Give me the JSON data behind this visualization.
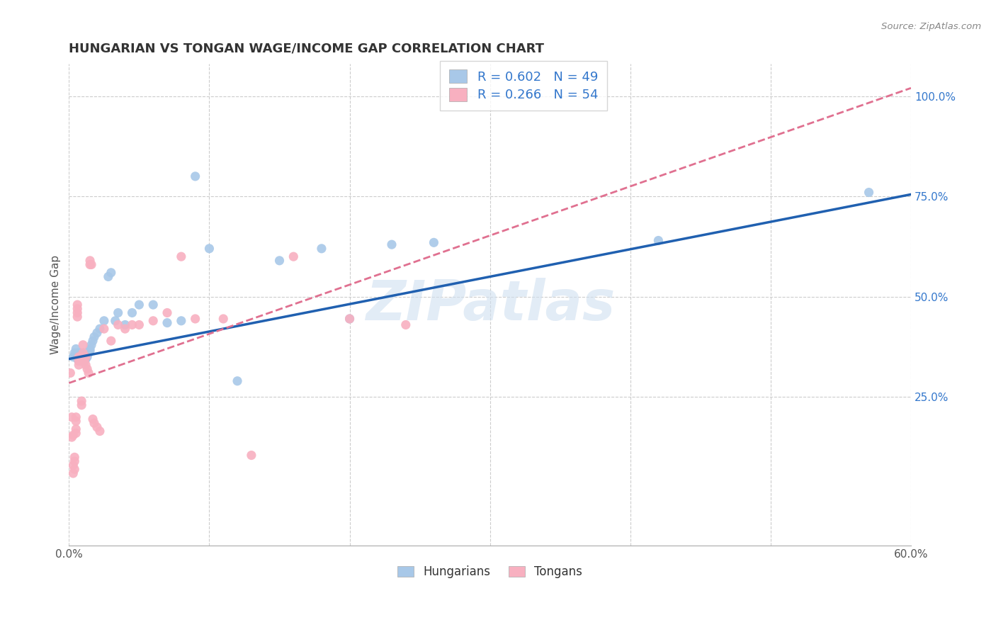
{
  "title": "HUNGARIAN VS TONGAN WAGE/INCOME GAP CORRELATION CHART",
  "source": "Source: ZipAtlas.com",
  "ylabel": "Wage/Income Gap",
  "xlim": [
    0.0,
    0.6
  ],
  "ylim": [
    -0.12,
    1.08
  ],
  "yticks": [
    0.25,
    0.5,
    0.75,
    1.0
  ],
  "ytick_labels": [
    "25.0%",
    "50.0%",
    "75.0%",
    "100.0%"
  ],
  "xticks": [
    0.0,
    0.1,
    0.2,
    0.3,
    0.4,
    0.5,
    0.6
  ],
  "xtick_labels": [
    "0.0%",
    "",
    "",
    "",
    "",
    "",
    "60.0%"
  ],
  "hungarian_R": 0.602,
  "hungarian_N": 49,
  "tongan_R": 0.266,
  "tongan_N": 54,
  "blue_color": "#a8c8e8",
  "pink_color": "#f8b0c0",
  "blue_line_color": "#2060b0",
  "pink_line_color": "#e07090",
  "axis_color": "#3377cc",
  "legend_text_color": "#3377cc",
  "background_color": "#ffffff",
  "grid_color": "#cccccc",
  "title_color": "#333333",
  "watermark_color": "#d0e0f0",
  "hungarian_x": [
    0.003,
    0.004,
    0.005,
    0.005,
    0.006,
    0.006,
    0.007,
    0.007,
    0.008,
    0.008,
    0.009,
    0.009,
    0.01,
    0.01,
    0.011,
    0.011,
    0.012,
    0.012,
    0.013,
    0.013,
    0.014,
    0.015,
    0.015,
    0.016,
    0.017,
    0.018,
    0.02,
    0.022,
    0.025,
    0.028,
    0.03,
    0.033,
    0.035,
    0.04,
    0.045,
    0.05,
    0.06,
    0.07,
    0.08,
    0.09,
    0.1,
    0.12,
    0.15,
    0.18,
    0.2,
    0.23,
    0.26,
    0.42,
    0.57
  ],
  "hungarian_y": [
    0.35,
    0.36,
    0.37,
    0.355,
    0.345,
    0.36,
    0.34,
    0.355,
    0.35,
    0.36,
    0.34,
    0.355,
    0.345,
    0.36,
    0.35,
    0.34,
    0.355,
    0.345,
    0.36,
    0.35,
    0.36,
    0.37,
    0.365,
    0.38,
    0.39,
    0.4,
    0.41,
    0.42,
    0.44,
    0.55,
    0.56,
    0.44,
    0.46,
    0.43,
    0.46,
    0.48,
    0.48,
    0.435,
    0.44,
    0.8,
    0.62,
    0.29,
    0.59,
    0.62,
    0.445,
    0.63,
    0.635,
    0.64,
    0.76
  ],
  "tongan_x": [
    0.001,
    0.002,
    0.002,
    0.003,
    0.003,
    0.003,
    0.004,
    0.004,
    0.004,
    0.005,
    0.005,
    0.005,
    0.005,
    0.006,
    0.006,
    0.006,
    0.006,
    0.007,
    0.007,
    0.007,
    0.008,
    0.008,
    0.009,
    0.009,
    0.01,
    0.01,
    0.011,
    0.011,
    0.012,
    0.012,
    0.013,
    0.014,
    0.015,
    0.015,
    0.016,
    0.017,
    0.018,
    0.02,
    0.022,
    0.025,
    0.03,
    0.035,
    0.04,
    0.045,
    0.05,
    0.06,
    0.07,
    0.08,
    0.09,
    0.11,
    0.13,
    0.16,
    0.2,
    0.24
  ],
  "tongan_y": [
    0.31,
    0.15,
    0.2,
    0.155,
    0.08,
    0.06,
    0.1,
    0.09,
    0.07,
    0.2,
    0.19,
    0.17,
    0.16,
    0.48,
    0.47,
    0.46,
    0.45,
    0.35,
    0.34,
    0.33,
    0.35,
    0.34,
    0.24,
    0.23,
    0.38,
    0.36,
    0.35,
    0.34,
    0.35,
    0.33,
    0.32,
    0.31,
    0.59,
    0.58,
    0.58,
    0.195,
    0.185,
    0.175,
    0.165,
    0.42,
    0.39,
    0.43,
    0.42,
    0.43,
    0.43,
    0.44,
    0.46,
    0.6,
    0.445,
    0.445,
    0.105,
    0.6,
    0.445,
    0.43
  ]
}
